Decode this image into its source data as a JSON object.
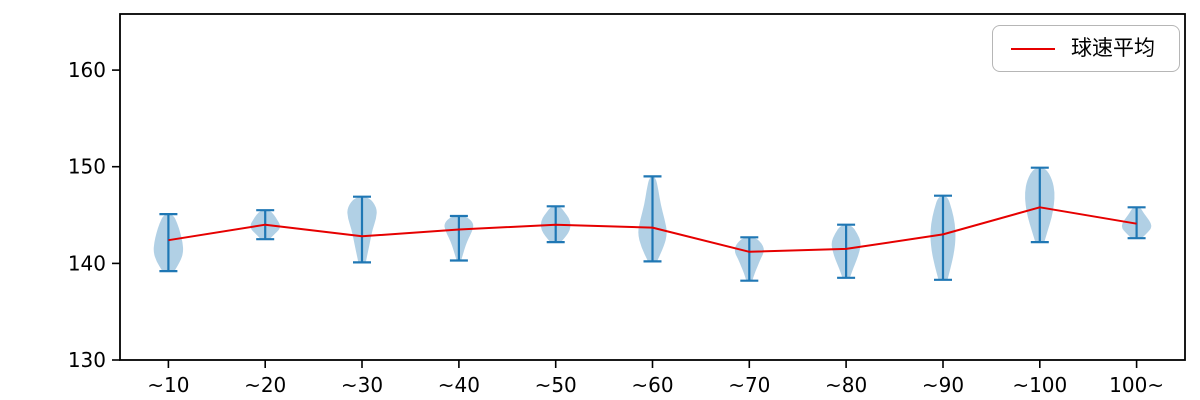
{
  "figure": {
    "background": "#ffffff"
  },
  "chart_data": {
    "type": "violin+line",
    "title": "",
    "xlabel": "",
    "ylabel": "",
    "grid": false,
    "legend_position": "upper right",
    "categories": [
      "~10",
      "~20",
      "~30",
      "~40",
      "~50",
      "~60",
      "~70",
      "~80",
      "~90",
      "~100",
      "100~"
    ],
    "y_ticks": [
      130,
      140,
      150,
      160
    ],
    "ylim": [
      130,
      165.8
    ],
    "colors": {
      "violin_fill": "#1f77b4",
      "violin_fill_opacity": 0.35,
      "whisker": "#1f77b4",
      "mean_line": "#e60000",
      "axis": "#000000"
    },
    "series": [
      {
        "name": "球速平均",
        "type": "line",
        "color": "#e60000",
        "values": [
          142.4,
          144.0,
          142.8,
          143.5,
          144.0,
          143.7,
          141.2,
          141.5,
          143.0,
          145.8,
          144.1
        ]
      }
    ],
    "violins": [
      {
        "category": "~10",
        "min": 139.2,
        "max": 145.1,
        "widths": [
          0.4,
          0.8,
          1.0,
          0.95,
          0.8,
          0.6,
          0.3
        ]
      },
      {
        "category": "~20",
        "min": 142.5,
        "max": 145.5,
        "widths": [
          0.3,
          0.6,
          0.95,
          1.0,
          0.8,
          0.6,
          0.3
        ]
      },
      {
        "category": "~30",
        "min": 140.1,
        "max": 146.9,
        "widths": [
          0.25,
          0.4,
          0.55,
          0.7,
          0.95,
          1.0,
          0.45
        ]
      },
      {
        "category": "~40",
        "min": 140.3,
        "max": 144.9,
        "widths": [
          0.15,
          0.3,
          0.45,
          0.65,
          0.9,
          1.0,
          0.5
        ]
      },
      {
        "category": "~50",
        "min": 142.2,
        "max": 145.9,
        "widths": [
          0.35,
          0.7,
          0.95,
          1.0,
          0.9,
          0.6,
          0.3
        ]
      },
      {
        "category": "~60",
        "min": 140.2,
        "max": 149.0,
        "widths": [
          0.3,
          0.75,
          1.0,
          0.8,
          0.55,
          0.4,
          0.2
        ]
      },
      {
        "category": "~70",
        "min": 138.2,
        "max": 142.7,
        "widths": [
          0.2,
          0.35,
          0.55,
          0.75,
          1.0,
          0.9,
          0.4
        ]
      },
      {
        "category": "~80",
        "min": 138.5,
        "max": 144.0,
        "widths": [
          0.25,
          0.45,
          0.7,
          0.9,
          1.0,
          0.75,
          0.35
        ]
      },
      {
        "category": "~90",
        "min": 138.3,
        "max": 147.0,
        "widths": [
          0.3,
          0.55,
          0.75,
          0.85,
          0.8,
          0.6,
          0.3
        ]
      },
      {
        "category": "~100",
        "min": 142.2,
        "max": 149.9,
        "widths": [
          0.3,
          0.55,
          0.8,
          0.95,
          1.0,
          0.85,
          0.4
        ]
      },
      {
        "category": "100~",
        "min": 142.6,
        "max": 145.8,
        "widths": [
          0.35,
          0.7,
          1.0,
          0.95,
          0.7,
          0.45,
          0.25
        ]
      }
    ]
  }
}
